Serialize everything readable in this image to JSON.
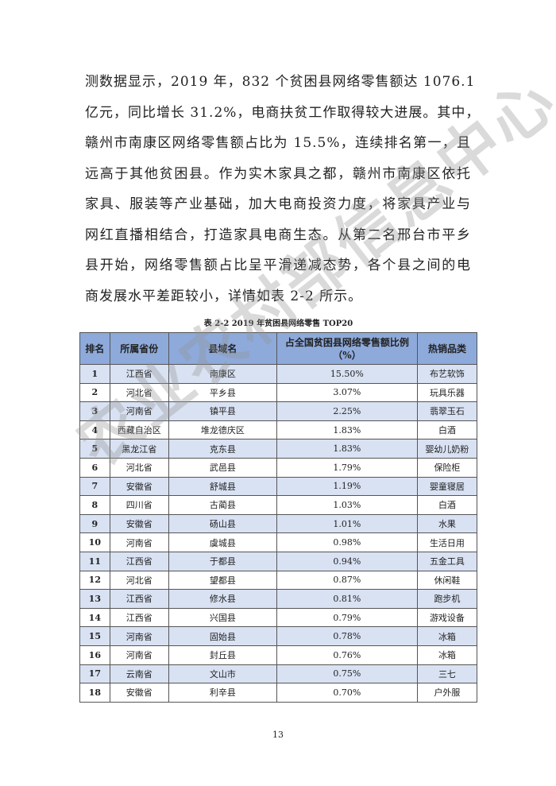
{
  "paragraph_lines": [
    "测数据显示，2019 年，832 个贫困县网络零售额达 1076.1",
    "亿元，同比增长 31.2%，电商扶贫工作取得较大进展。其中，",
    "赣州市南康区网络零售额占比为 15.5%，连续排名第一，且",
    "远高于其他贫困县。作为实木家具之都，赣州市南康区依托",
    "家具、服装等产业基础，加大电商投资力度，将家具产业与",
    "网红直播相结合，打造家具电商生态。从第二名邢台市平乡",
    "县开始，网络零售额占比呈平滑递减态势，各个县之间的电",
    "商发展水平差距较小，详情如表 2-2 所示。"
  ],
  "table": {
    "caption": "表 2-2 2019 年贫困县网络零售 TOP20",
    "headers": [
      "排名",
      "所属省份",
      "县域名",
      "占全国贫困县网络零售额比例（%）",
      "热销品类"
    ],
    "rows": [
      [
        "1",
        "江西省",
        "南康区",
        "15.50%",
        "布艺软饰"
      ],
      [
        "2",
        "河北省",
        "平乡县",
        "3.07%",
        "玩具乐器"
      ],
      [
        "3",
        "河南省",
        "镇平县",
        "2.25%",
        "翡翠玉石"
      ],
      [
        "4",
        "西藏自治区",
        "堆龙德庆区",
        "1.83%",
        "白酒"
      ],
      [
        "5",
        "黑龙江省",
        "克东县",
        "1.83%",
        "婴幼儿奶粉"
      ],
      [
        "6",
        "河北省",
        "武邑县",
        "1.79%",
        "保险柜"
      ],
      [
        "7",
        "安徽省",
        "舒城县",
        "1.19%",
        "婴童寝居"
      ],
      [
        "8",
        "四川省",
        "古蔺县",
        "1.03%",
        "白酒"
      ],
      [
        "9",
        "安徽省",
        "砀山县",
        "1.01%",
        "水果"
      ],
      [
        "10",
        "河南省",
        "虞城县",
        "0.98%",
        "生活日用"
      ],
      [
        "11",
        "江西省",
        "于都县",
        "0.94%",
        "五金工具"
      ],
      [
        "12",
        "河北省",
        "望都县",
        "0.87%",
        "休闲鞋"
      ],
      [
        "13",
        "江西省",
        "修水县",
        "0.81%",
        "跑步机"
      ],
      [
        "14",
        "江西省",
        "兴国县",
        "0.79%",
        "游戏设备"
      ],
      [
        "15",
        "河南省",
        "固始县",
        "0.78%",
        "冰箱"
      ],
      [
        "16",
        "河南省",
        "封丘县",
        "0.76%",
        "冰箱"
      ],
      [
        "17",
        "云南省",
        "文山市",
        "0.75%",
        "三七"
      ],
      [
        "18",
        "安徽省",
        "利辛县",
        "0.70%",
        "户外服"
      ]
    ]
  },
  "page_number": "13",
  "watermark": "农业农村部信息中心",
  "colors": {
    "header_bg": "#8eaadb",
    "alt_row_bg": "#d9e2f3"
  }
}
